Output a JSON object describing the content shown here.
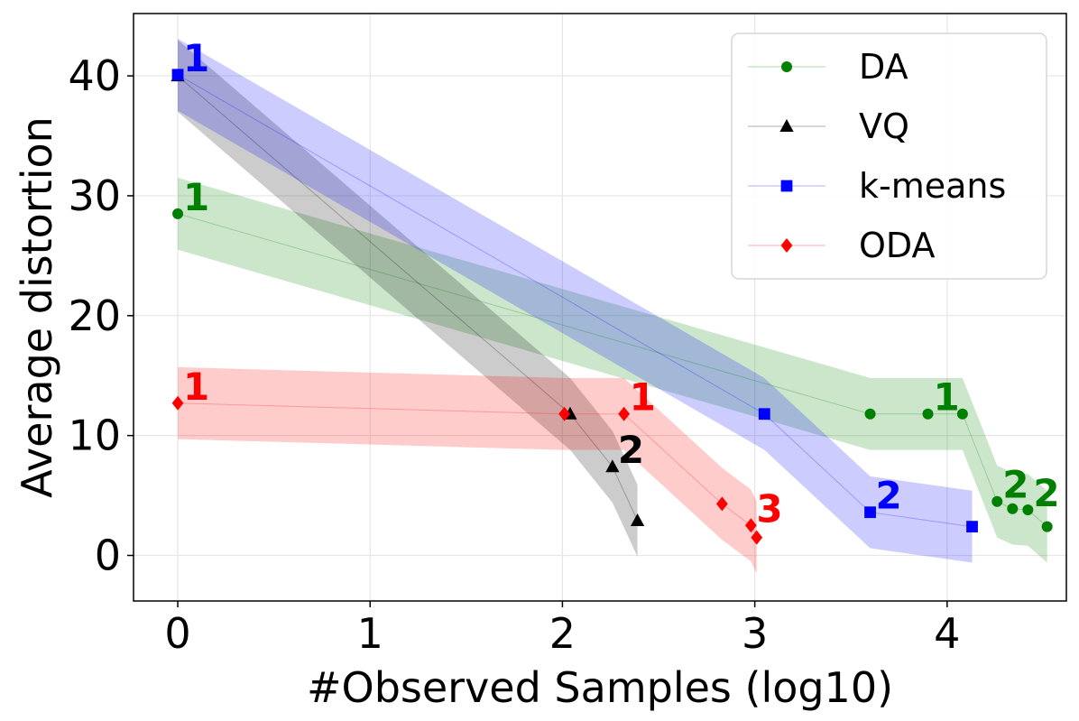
{
  "chart_data": {
    "type": "line",
    "title": "",
    "xlabel": "#Observed Samples (log10)",
    "ylabel": "Average distortion",
    "xlim": [
      -0.23,
      4.62
    ],
    "ylim": [
      -3.8,
      45.2
    ],
    "xticks": [
      0,
      1,
      2,
      3,
      4
    ],
    "yticks": [
      0,
      10,
      20,
      30,
      40
    ],
    "grid": true,
    "legend_position": "top-right",
    "series": [
      {
        "name": "DA",
        "color": "#008000",
        "marker": "circle",
        "points": [
          {
            "x": 0.0,
            "y": 28.5,
            "lo": 25.5,
            "hi": 31.5
          },
          {
            "x": 3.6,
            "y": 11.8,
            "lo": 8.8,
            "hi": 14.8
          },
          {
            "x": 3.9,
            "y": 11.8,
            "lo": 8.8,
            "hi": 14.8
          },
          {
            "x": 4.08,
            "y": 11.8,
            "lo": 8.8,
            "hi": 14.8
          },
          {
            "x": 4.26,
            "y": 4.5,
            "lo": 1.5,
            "hi": 7.5
          },
          {
            "x": 4.34,
            "y": 3.9,
            "lo": 0.9,
            "hi": 6.9
          },
          {
            "x": 4.42,
            "y": 3.8,
            "lo": 0.8,
            "hi": 6.8
          },
          {
            "x": 4.52,
            "y": 2.4,
            "lo": -0.6,
            "hi": 5.4
          }
        ],
        "annotations": [
          {
            "x": 0.0,
            "y": 28.5,
            "text": "1"
          },
          {
            "x": 3.9,
            "y": 11.8,
            "text": "1"
          },
          {
            "x": 4.26,
            "y": 4.5,
            "text": "2"
          },
          {
            "x": 4.42,
            "y": 3.8,
            "text": "2"
          }
        ]
      },
      {
        "name": "VQ",
        "color": "#000000",
        "marker": "triangle",
        "points": [
          {
            "x": 0.0,
            "y": 40.0,
            "lo": 37.0,
            "hi": 43.0
          },
          {
            "x": 2.04,
            "y": 11.8,
            "lo": 8.8,
            "hi": 14.8
          },
          {
            "x": 2.26,
            "y": 7.4,
            "lo": 4.4,
            "hi": 10.4
          },
          {
            "x": 2.39,
            "y": 2.9,
            "lo": -0.1,
            "hi": 5.9
          }
        ],
        "annotations": [
          {
            "x": 2.26,
            "y": 7.4,
            "text": "2"
          }
        ]
      },
      {
        "name": "k-means",
        "color": "#0000ff",
        "marker": "square",
        "points": [
          {
            "x": 0.0,
            "y": 40.1,
            "lo": 37.1,
            "hi": 43.1
          },
          {
            "x": 3.05,
            "y": 11.8,
            "lo": 8.8,
            "hi": 14.8
          },
          {
            "x": 3.6,
            "y": 3.6,
            "lo": 0.6,
            "hi": 6.6
          },
          {
            "x": 4.13,
            "y": 2.4,
            "lo": -0.6,
            "hi": 5.4
          }
        ],
        "annotations": [
          {
            "x": 0.0,
            "y": 40.1,
            "text": "1"
          },
          {
            "x": 3.6,
            "y": 3.6,
            "text": "2"
          }
        ]
      },
      {
        "name": "ODA",
        "color": "#ff0000",
        "marker": "diamond",
        "points": [
          {
            "x": 0.0,
            "y": 12.7,
            "lo": 9.7,
            "hi": 15.7
          },
          {
            "x": 2.01,
            "y": 11.8,
            "lo": 8.8,
            "hi": 14.8
          },
          {
            "x": 2.32,
            "y": 11.8,
            "lo": 8.8,
            "hi": 14.8
          },
          {
            "x": 2.83,
            "y": 4.3,
            "lo": 1.3,
            "hi": 7.3
          },
          {
            "x": 2.98,
            "y": 2.5,
            "lo": -0.5,
            "hi": 5.5
          },
          {
            "x": 3.01,
            "y": 1.5,
            "lo": -1.5,
            "hi": 4.5
          }
        ],
        "annotations": [
          {
            "x": 0.0,
            "y": 12.7,
            "text": "1"
          },
          {
            "x": 2.32,
            "y": 11.8,
            "text": "1"
          },
          {
            "x": 2.98,
            "y": 2.5,
            "text": "3"
          }
        ]
      }
    ]
  }
}
